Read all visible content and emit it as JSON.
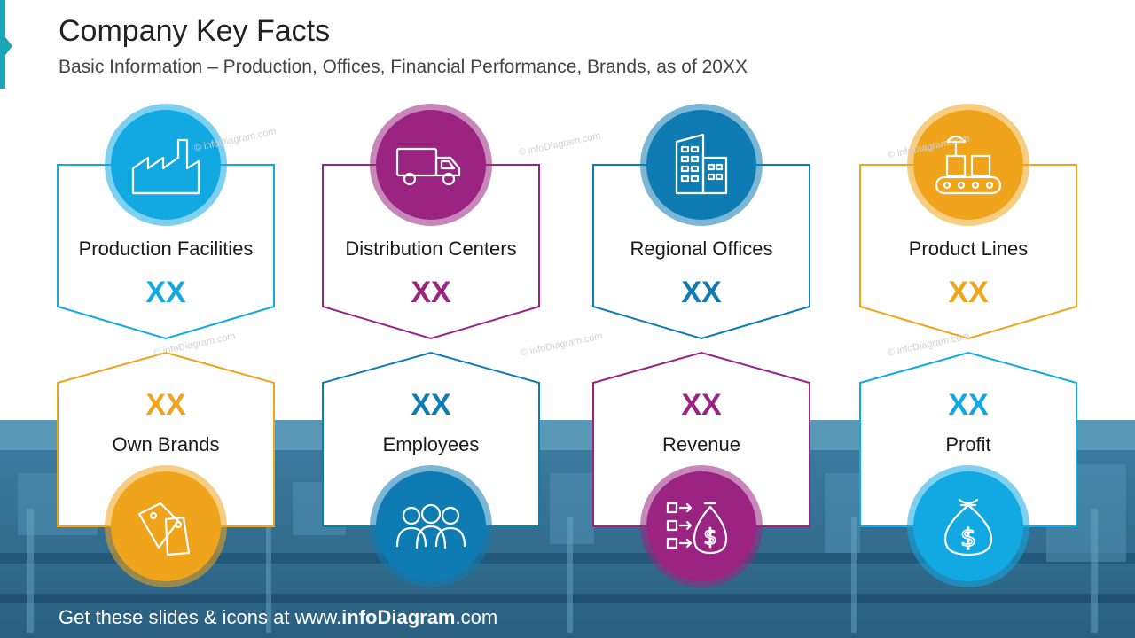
{
  "header": {
    "title": "Company Key Facts",
    "subtitle": "Basic Information – Production, Offices, Financial Performance, Brands, as of 20XX"
  },
  "watermark": "© infoDiagram.com",
  "footer": {
    "prefix": "Get these slides & icons at www.",
    "brand": "infoDiagram",
    "suffix": ".com"
  },
  "colors": {
    "cyan": "#12a9e3",
    "purple": "#9b2482",
    "blue": "#0e7cb2",
    "orange": "#f0a41c"
  },
  "top_cards": [
    {
      "label": "Production Facilities",
      "value": "XX",
      "color": "#12a9e3",
      "icon": "factory-icon"
    },
    {
      "label": "Distribution Centers",
      "value": "XX",
      "color": "#9b2482",
      "icon": "truck-icon"
    },
    {
      "label": "Regional Offices",
      "value": "XX",
      "color": "#0e7cb2",
      "icon": "office-building-icon"
    },
    {
      "label": "Product Lines",
      "value": "XX",
      "color": "#f0a41c",
      "icon": "conveyor-belt-icon"
    }
  ],
  "bottom_cards": [
    {
      "label": "Own Brands",
      "value": "XX",
      "color": "#f0a41c",
      "icon": "price-tags-icon"
    },
    {
      "label": "Employees",
      "value": "XX",
      "color": "#0e7cb2",
      "icon": "people-group-icon"
    },
    {
      "label": "Revenue",
      "value": "XX",
      "color": "#9b2482",
      "icon": "money-flow-icon"
    },
    {
      "label": "Profit",
      "value": "XX",
      "color": "#12a9e3",
      "icon": "money-bag-icon"
    }
  ]
}
